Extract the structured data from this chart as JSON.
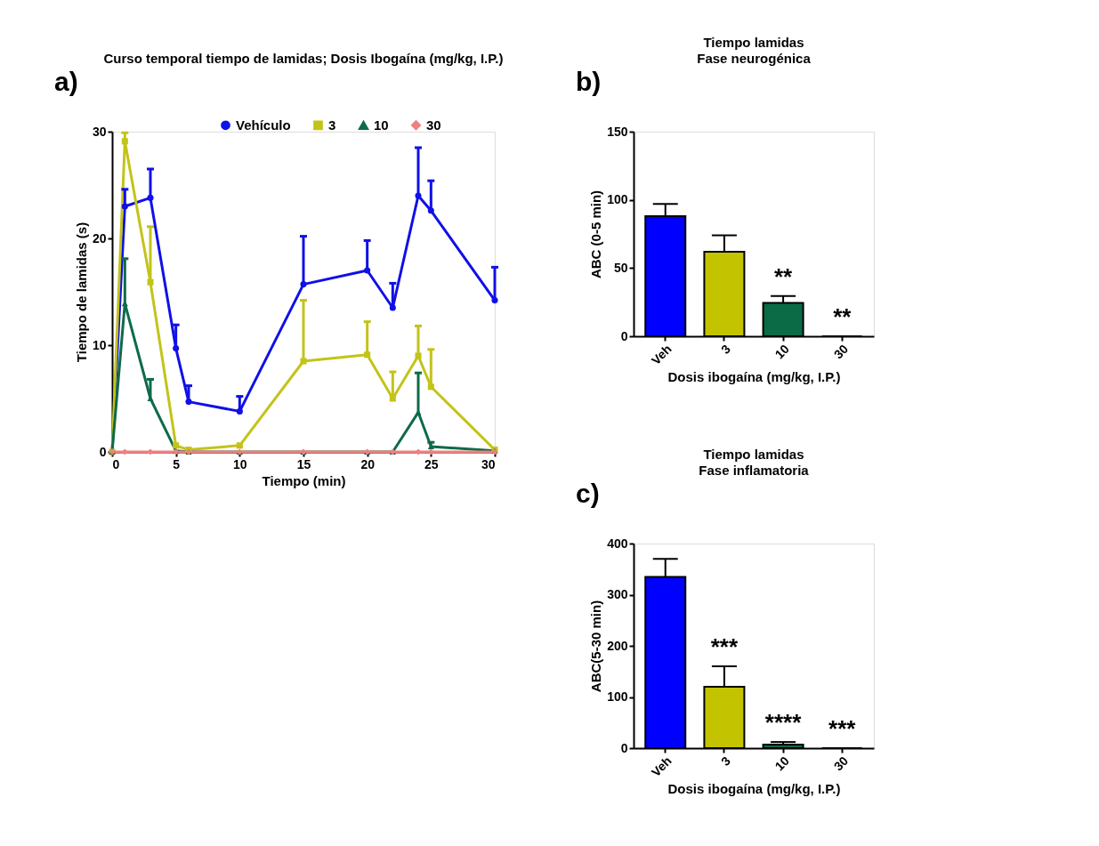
{
  "chart_data": [
    {
      "type": "line",
      "title": "Curso temporal tiempo de lamidas; Dosis Ibogaína (mg/kg, I.P.)",
      "xlabel": "Tiempo (min)",
      "ylabel": "Tiempo de lamidas (s)",
      "x": [
        0,
        1,
        3,
        5,
        6,
        10,
        15,
        20,
        22,
        24,
        25,
        30
      ],
      "series": [
        {
          "name": "Vehículo",
          "color": "#1010e8",
          "marker": "circle",
          "values": [
            0,
            23,
            23.8,
            9.7,
            4.7,
            3.8,
            15.7,
            17,
            13.5,
            24,
            22.6,
            14.2
          ],
          "errors": [
            null,
            [
              23,
              24.6
            ],
            [
              23.8,
              26.5
            ],
            [
              9.7,
              11.9
            ],
            [
              4.7,
              6.2
            ],
            [
              3.8,
              5.2
            ],
            [
              15.7,
              20.2
            ],
            [
              17,
              19.8
            ],
            [
              13.5,
              15.8
            ],
            [
              24,
              28.5
            ],
            [
              22.6,
              25.4
            ],
            [
              14.2,
              17.3
            ]
          ]
        },
        {
          "name": "3",
          "color": "#c3c31a",
          "marker": "square",
          "values": [
            0,
            29.1,
            15.9,
            0.6,
            0.2,
            0.6,
            8.5,
            9.1,
            5,
            9,
            6.1,
            0.2
          ],
          "errors": [
            null,
            [
              29.1,
              29.9
            ],
            [
              15.9,
              21.1
            ],
            null,
            null,
            null,
            [
              8.5,
              14.2
            ],
            [
              9.1,
              12.2
            ],
            [
              5,
              7.5
            ],
            [
              9,
              11.8
            ],
            [
              6.1,
              9.6
            ],
            null
          ]
        },
        {
          "name": "10",
          "color": "#0e6b48",
          "marker": "triangle",
          "values": [
            0,
            13.9,
            5,
            0.1,
            0,
            0,
            0,
            0,
            0,
            3.7,
            0.5,
            0.1
          ],
          "errors": [
            null,
            [
              13.9,
              18.1
            ],
            [
              5,
              6.8
            ],
            null,
            null,
            null,
            null,
            null,
            null,
            [
              3.7,
              7.4
            ],
            [
              0.5,
              0.9
            ],
            null
          ]
        },
        {
          "name": "30",
          "color": "#f08080",
          "marker": "diamond",
          "values": [
            0,
            0,
            0,
            0,
            0,
            0,
            0,
            0,
            0,
            0,
            0,
            0
          ]
        }
      ],
      "xlim": [
        0,
        30
      ],
      "xticks": [
        0,
        5,
        10,
        15,
        20,
        25,
        30
      ],
      "ylim": [
        0,
        30
      ],
      "yticks": [
        0,
        10,
        20,
        30
      ],
      "legend": "top right",
      "grid": false,
      "line_style": "solid",
      "annotations": [
        "a)"
      ]
    },
    {
      "type": "bar",
      "title": "Tiempo lamidas",
      "subtitle": "Fase neurogénica",
      "xlabel": "Dosis ibogaína (mg/kg, I.P.)",
      "ylabel": "ABC (0-5 min)",
      "categories": [
        "Veh",
        "3",
        "10",
        "30"
      ],
      "values": [
        88,
        62,
        24.5,
        0
      ],
      "colors": [
        "#0000ff",
        "#c3c300",
        "#0a6b46",
        "#000000"
      ],
      "errors": [
        [
          88,
          97
        ],
        [
          62,
          74
        ],
        [
          24.5,
          29.5
        ],
        null
      ],
      "ylim": [
        0,
        150
      ],
      "yticks": [
        0,
        50,
        100,
        150
      ],
      "grid": false,
      "annotations": [
        "b)",
        {
          "text": "**",
          "x": "10",
          "y": 29.5
        },
        {
          "text": "**",
          "x": "30",
          "y": 0
        }
      ]
    },
    {
      "type": "bar",
      "title": "Tiempo lamidas",
      "subtitle": "Fase inflamatoria",
      "xlabel": "Dosis ibogaína (mg/kg, I.P.)",
      "ylabel": "ABC(5-30 min)",
      "categories": [
        "Veh",
        "3",
        "10",
        "30"
      ],
      "values": [
        335,
        120,
        7,
        0
      ],
      "colors": [
        "#0000ff",
        "#c3c300",
        "#0a6b46",
        "#000000"
      ],
      "errors": [
        [
          335,
          370
        ],
        [
          120,
          160
        ],
        [
          7,
          12
        ],
        null
      ],
      "ylim": [
        0,
        400
      ],
      "yticks": [
        0,
        100,
        200,
        300,
        400
      ],
      "grid": false,
      "annotations": [
        "c)",
        {
          "text": "***",
          "x": "3",
          "y": 160
        },
        {
          "text": "****",
          "x": "10",
          "y": 12
        },
        {
          "text": "***",
          "x": "30",
          "y": 0
        }
      ]
    }
  ]
}
